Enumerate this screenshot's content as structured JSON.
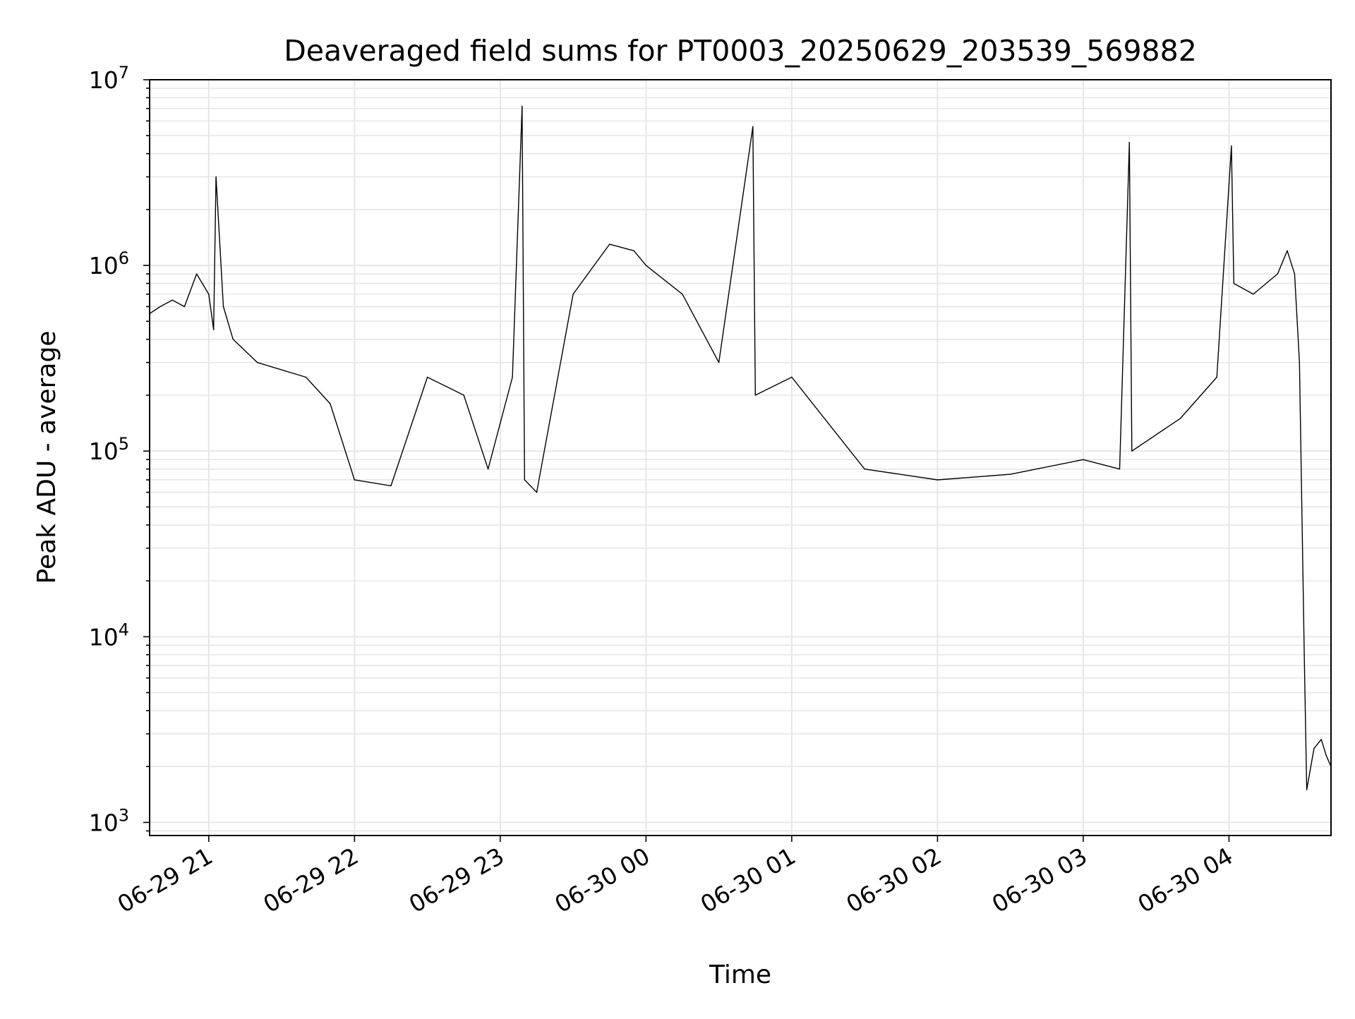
{
  "chart_data": {
    "type": "line",
    "title": "Deaveraged field sums for PT0003_20250629_203539_569882",
    "xlabel": "Time",
    "ylabel": "Peak ADU - average",
    "yscale": "log",
    "ylim": [
      850,
      10000000
    ],
    "xlim": [
      "2025-06-29 20:35:39",
      "2025-06-30 04:42:00"
    ],
    "grid": true,
    "line_color": "#000000",
    "grid_color": "#e6e6e6",
    "x_ticks": [
      {
        "value": "2025-06-29 21:00:00",
        "label": "06-29 21"
      },
      {
        "value": "2025-06-29 22:00:00",
        "label": "06-29 22"
      },
      {
        "value": "2025-06-29 23:00:00",
        "label": "06-29 23"
      },
      {
        "value": "2025-06-30 00:00:00",
        "label": "06-30 00"
      },
      {
        "value": "2025-06-30 01:00:00",
        "label": "06-30 01"
      },
      {
        "value": "2025-06-30 02:00:00",
        "label": "06-30 02"
      },
      {
        "value": "2025-06-30 03:00:00",
        "label": "06-30 03"
      },
      {
        "value": "2025-06-30 04:00:00",
        "label": "06-30 04"
      }
    ],
    "y_ticks": [
      {
        "value": 1000,
        "base": "10",
        "exp": "3"
      },
      {
        "value": 10000,
        "base": "10",
        "exp": "4"
      },
      {
        "value": 100000,
        "base": "10",
        "exp": "5"
      },
      {
        "value": 1000000,
        "base": "10",
        "exp": "6"
      },
      {
        "value": 10000000,
        "base": "10",
        "exp": "7"
      }
    ],
    "series": [
      {
        "x": [
          "2025-06-29 20:35:39",
          "2025-06-29 20:40:00",
          "2025-06-29 20:45:00",
          "2025-06-29 20:50:00",
          "2025-06-29 20:55:00",
          "2025-06-29 21:00:00",
          "2025-06-29 21:02:00",
          "2025-06-29 21:03:00",
          "2025-06-29 21:06:00",
          "2025-06-29 21:10:00",
          "2025-06-29 21:20:00",
          "2025-06-29 21:40:00",
          "2025-06-29 21:50:00",
          "2025-06-29 22:00:00",
          "2025-06-29 22:15:00",
          "2025-06-29 22:30:00",
          "2025-06-29 22:45:00",
          "2025-06-29 22:55:00",
          "2025-06-29 23:05:00",
          "2025-06-29 23:09:00",
          "2025-06-29 23:10:00",
          "2025-06-29 23:15:00",
          "2025-06-29 23:30:00",
          "2025-06-29 23:45:00",
          "2025-06-29 23:55:00",
          "2025-06-30 00:00:00",
          "2025-06-30 00:15:00",
          "2025-06-30 00:30:00",
          "2025-06-30 00:44:00",
          "2025-06-30 00:45:00",
          "2025-06-30 01:00:00",
          "2025-06-30 01:30:00",
          "2025-06-30 02:00:00",
          "2025-06-30 02:30:00",
          "2025-06-30 03:00:00",
          "2025-06-30 03:15:00",
          "2025-06-30 03:19:00",
          "2025-06-30 03:20:00",
          "2025-06-30 03:40:00",
          "2025-06-30 03:55:00",
          "2025-06-30 04:01:00",
          "2025-06-30 04:02:00",
          "2025-06-30 04:10:00",
          "2025-06-30 04:20:00",
          "2025-06-30 04:24:00",
          "2025-06-30 04:27:00",
          "2025-06-30 04:29:00",
          "2025-06-30 04:31:00",
          "2025-06-30 04:32:00",
          "2025-06-30 04:35:00",
          "2025-06-30 04:38:00",
          "2025-06-30 04:40:00",
          "2025-06-30 04:42:00"
        ],
        "values": [
          550000,
          600000,
          650000,
          600000,
          900000,
          700000,
          450000,
          3000000,
          600000,
          400000,
          300000,
          250000,
          180000,
          70000,
          65000,
          250000,
          200000,
          80000,
          250000,
          7200000,
          70000,
          60000,
          700000,
          1300000,
          1200000,
          1000000,
          700000,
          300000,
          5600000,
          200000,
          250000,
          80000,
          70000,
          75000,
          90000,
          80000,
          4600000,
          100000,
          150000,
          250000,
          4400000,
          800000,
          700000,
          900000,
          1200000,
          900000,
          300000,
          8000,
          1500,
          2500,
          2800,
          2300,
          2000
        ]
      }
    ]
  }
}
